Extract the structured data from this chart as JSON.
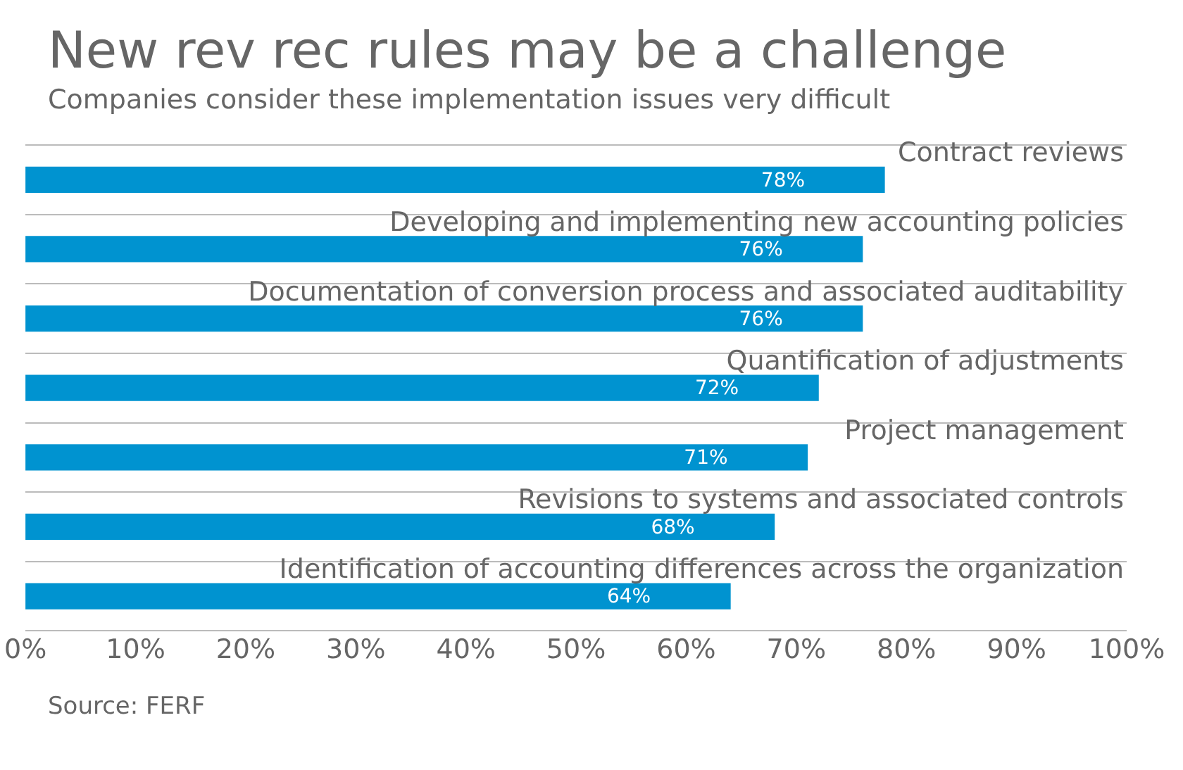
{
  "chart_data": {
    "type": "bar",
    "orientation": "horizontal",
    "title": "New rev rec rules may be a challenge",
    "subtitle": "Companies consider these implementation issues very difficult",
    "categories": [
      "Contract reviews",
      "Developing and implementing new accounting policies",
      "Documentation of conversion process and associated auditability",
      "Quantification of adjustments",
      "Project management",
      "Revisions to systems and associated controls",
      "Identification of accounting differences across the organization"
    ],
    "values": [
      78,
      76,
      76,
      72,
      71,
      68,
      64
    ],
    "color": "#0093d0",
    "value_labels": [
      "78%",
      "76%",
      "76%",
      "72%",
      "71%",
      "68%",
      "64%"
    ],
    "xlim": [
      0,
      100
    ],
    "xticks": [
      {
        "value": 0,
        "label": "0%"
      },
      {
        "value": 10,
        "label": "10%"
      },
      {
        "value": 20,
        "label": "20%"
      },
      {
        "value": 30,
        "label": "30%"
      },
      {
        "value": 40,
        "label": "40%"
      },
      {
        "value": 50,
        "label": "50%"
      },
      {
        "value": 60,
        "label": "60%"
      },
      {
        "value": 70,
        "label": "70%"
      },
      {
        "value": 80,
        "label": "80%"
      },
      {
        "value": 90,
        "label": "90%"
      },
      {
        "value": 100,
        "label": "100%"
      }
    ],
    "grid": "y",
    "legend": false,
    "annotations": [
      "Source: FERF"
    ]
  }
}
